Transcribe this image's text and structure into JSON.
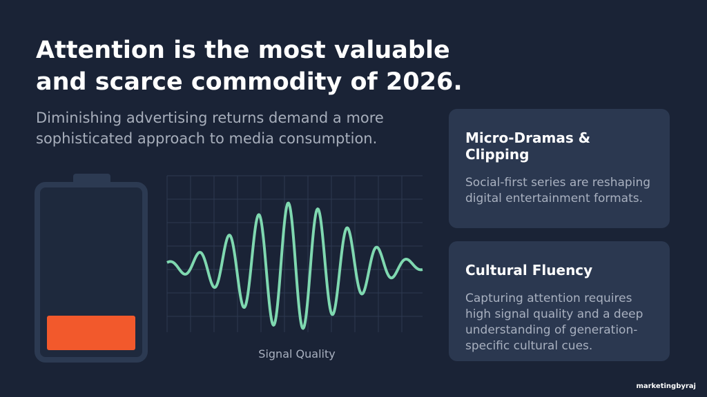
{
  "title": [
    "Attention is the most valuable",
    "and scarce commodity of 2026."
  ],
  "subtitle": [
    "Diminishing advertising returns demand a more",
    "sophisticated approach to media consumption."
  ],
  "signal_label": "Signal Quality",
  "cards": [
    {
      "heading": "Micro-Dramas & Clipping",
      "body": "Social-first series are reshaping digital entertainment formats."
    },
    {
      "heading": "Cultural Fluency",
      "body": "Capturing attention requires high signal quality and a deep understanding of generation-specific cultural cues."
    }
  ],
  "brand": "marketingbyraj"
}
